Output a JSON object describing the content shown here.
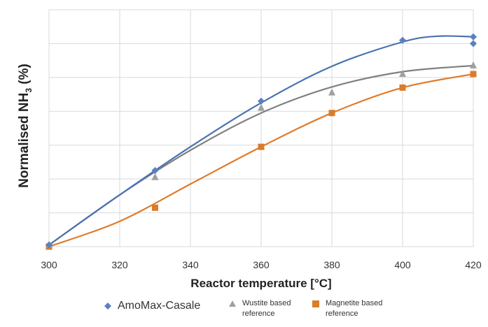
{
  "chart_data": {
    "type": "scatter",
    "title": "",
    "xlabel": "Reactor temperature [°C]",
    "ylabel_main": "Normalised NH",
    "ylabel_sub": "3",
    "ylabel_tail": " (%)",
    "xlim": [
      300,
      420
    ],
    "xticks": [
      "300",
      "320",
      "340",
      "360",
      "380",
      "400",
      "420"
    ],
    "ylim": [
      0,
      7
    ],
    "y_tick_labels_shown": false,
    "grid": true,
    "legend_position": "bottom",
    "series": [
      {
        "name": "AmoMax-Casale",
        "marker": "diamond",
        "color": "#5b7fc1",
        "line_color": "#4a72b0",
        "points": [
          [
            300,
            0.05
          ],
          [
            330,
            2.25
          ],
          [
            360,
            4.3
          ],
          [
            400,
            6.1
          ],
          [
            420,
            6.2
          ],
          [
            420,
            6.0
          ]
        ],
        "trend": [
          [
            300,
            0.05
          ],
          [
            320,
            1.53
          ],
          [
            340,
            2.95
          ],
          [
            360,
            4.25
          ],
          [
            380,
            5.33
          ],
          [
            400,
            6.05
          ],
          [
            410,
            6.22
          ],
          [
            420,
            6.2
          ]
        ]
      },
      {
        "name": "Wustite based reference",
        "marker": "triangle",
        "color": "#a0a0a0",
        "line_color": "#808080",
        "points": [
          [
            300,
            0.05
          ],
          [
            330,
            2.05
          ],
          [
            360,
            4.1
          ],
          [
            380,
            4.55
          ],
          [
            400,
            5.1
          ],
          [
            420,
            5.35
          ]
        ],
        "trend": [
          [
            300,
            0.05
          ],
          [
            320,
            1.53
          ],
          [
            340,
            2.85
          ],
          [
            360,
            3.95
          ],
          [
            380,
            4.72
          ],
          [
            400,
            5.17
          ],
          [
            420,
            5.35
          ]
        ]
      },
      {
        "name": "Magnetite based reference",
        "marker": "square",
        "color": "#d97c2b",
        "line_color": "#e07b2a",
        "points": [
          [
            300,
            0.0
          ],
          [
            330,
            1.15
          ],
          [
            360,
            2.95
          ],
          [
            380,
            3.95
          ],
          [
            400,
            4.7
          ],
          [
            420,
            5.1
          ]
        ],
        "trend": [
          [
            300,
            0.0
          ],
          [
            320,
            0.75
          ],
          [
            340,
            1.85
          ],
          [
            360,
            2.95
          ],
          [
            380,
            3.95
          ],
          [
            400,
            4.7
          ],
          [
            420,
            5.1
          ]
        ]
      }
    ]
  },
  "legend": {
    "item1": "AmoMax-Casale",
    "item2": "Wustite based reference",
    "item3": "Magnetite based reference"
  }
}
